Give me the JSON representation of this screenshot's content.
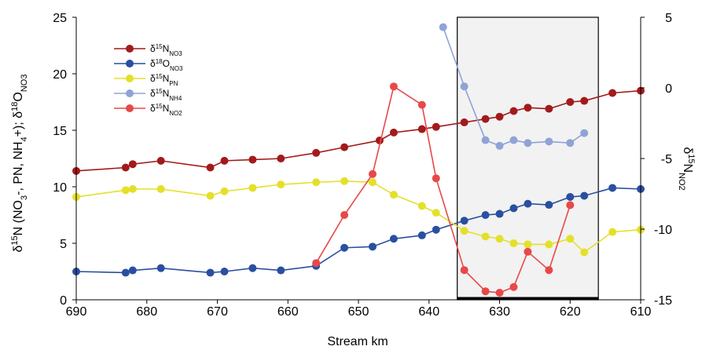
{
  "chart_data": {
    "type": "line",
    "xlabel": "Stream km",
    "x_axis": {
      "ticks": [
        690,
        680,
        670,
        660,
        650,
        640,
        630,
        620,
        610
      ],
      "range": [
        690,
        610
      ],
      "reversed": true
    },
    "y_left": {
      "label_parts": {
        "d": "δ",
        "sup": "15",
        "a": "N (NO",
        "sub3": "3",
        "b": "-, PN, NH",
        "sub4": "4",
        "c": "+); δ",
        "sup18": "18",
        "e": "O",
        "subNO3": "NO3"
      },
      "ticks": [
        0,
        5,
        10,
        15,
        20,
        25
      ],
      "range": [
        0,
        25
      ]
    },
    "y_right": {
      "label_parts": {
        "d": "δ",
        "sup": "15",
        "n": "N",
        "sub": "NO2"
      },
      "ticks": [
        5,
        0,
        -5,
        -10,
        -15
      ],
      "range": [
        -15,
        5
      ]
    },
    "shaded_region": {
      "x_from": 636,
      "x_to": 616
    },
    "legend": {
      "placement": "top-left"
    },
    "series": [
      {
        "name": "δ15NNO3",
        "label_main": "N",
        "label_sup": "15",
        "label_sub": "NO3",
        "color": "#a31a1c",
        "axis": "left",
        "x": [
          690,
          683,
          682,
          678,
          671,
          669,
          665,
          661,
          656,
          652,
          647,
          645,
          641,
          639,
          635,
          632,
          630,
          628,
          626,
          623,
          620,
          618,
          614,
          610
        ],
        "y": [
          11.4,
          11.7,
          12.0,
          12.3,
          11.7,
          12.3,
          12.4,
          12.5,
          13.0,
          13.5,
          14.1,
          14.8,
          15.1,
          15.3,
          15.7,
          16.0,
          16.2,
          16.7,
          17.0,
          16.9,
          17.5,
          17.6,
          18.3,
          18.5
        ]
      },
      {
        "name": "δ18ONO3",
        "label_main": "O",
        "label_sup": "18",
        "label_sub": "NO3",
        "color": "#2a4fa0",
        "axis": "left",
        "x": [
          690,
          683,
          682,
          678,
          671,
          669,
          665,
          661,
          656,
          652,
          648,
          645,
          641,
          639,
          635,
          632,
          630,
          628,
          626,
          623,
          620,
          618,
          614,
          610
        ],
        "y": [
          2.5,
          2.4,
          2.6,
          2.8,
          2.4,
          2.5,
          2.8,
          2.6,
          3.0,
          4.6,
          4.7,
          5.4,
          5.7,
          6.2,
          7.0,
          7.5,
          7.6,
          8.1,
          8.5,
          8.4,
          9.1,
          9.2,
          9.9,
          9.8
        ]
      },
      {
        "name": "δ15NPN",
        "label_main": "N",
        "label_sup": "15",
        "label_sub": "PN",
        "color": "#e4e02a",
        "axis": "left",
        "x": [
          690,
          683,
          682,
          678,
          671,
          669,
          665,
          661,
          656,
          652,
          648,
          645,
          641,
          639,
          635,
          632,
          630,
          628,
          626,
          623,
          620,
          618,
          614,
          610
        ],
        "y": [
          9.1,
          9.7,
          9.8,
          9.8,
          9.2,
          9.6,
          9.9,
          10.2,
          10.4,
          10.5,
          10.4,
          9.3,
          8.3,
          7.7,
          6.1,
          5.6,
          5.4,
          5.0,
          4.9,
          4.9,
          5.4,
          4.2,
          6.0,
          6.2
        ]
      },
      {
        "name": "δ15NNH4",
        "label_main": "N",
        "label_sup": "15",
        "label_sub": "NH4",
        "color": "#8fa3d6",
        "axis": "right",
        "x": [
          638,
          635,
          632,
          630,
          628,
          626,
          623,
          620,
          618
        ],
        "y": [
          4.3,
          0.1,
          -3.7,
          -4.1,
          -3.7,
          -3.9,
          -3.8,
          -3.9,
          -3.2
        ]
      },
      {
        "name": "δ15NNO2",
        "label_main": "N",
        "label_sup": "15",
        "label_sub": "NO2",
        "color": "#e84848",
        "axis": "right",
        "x": [
          656,
          652,
          648,
          645,
          641,
          639,
          635,
          632,
          630,
          628,
          626,
          623,
          620
        ],
        "y": [
          -12.4,
          -9.0,
          -6.1,
          0.1,
          -1.2,
          -6.4,
          -12.9,
          -14.4,
          -14.5,
          -14.1,
          -11.6,
          -12.9,
          -8.3
        ]
      }
    ]
  }
}
